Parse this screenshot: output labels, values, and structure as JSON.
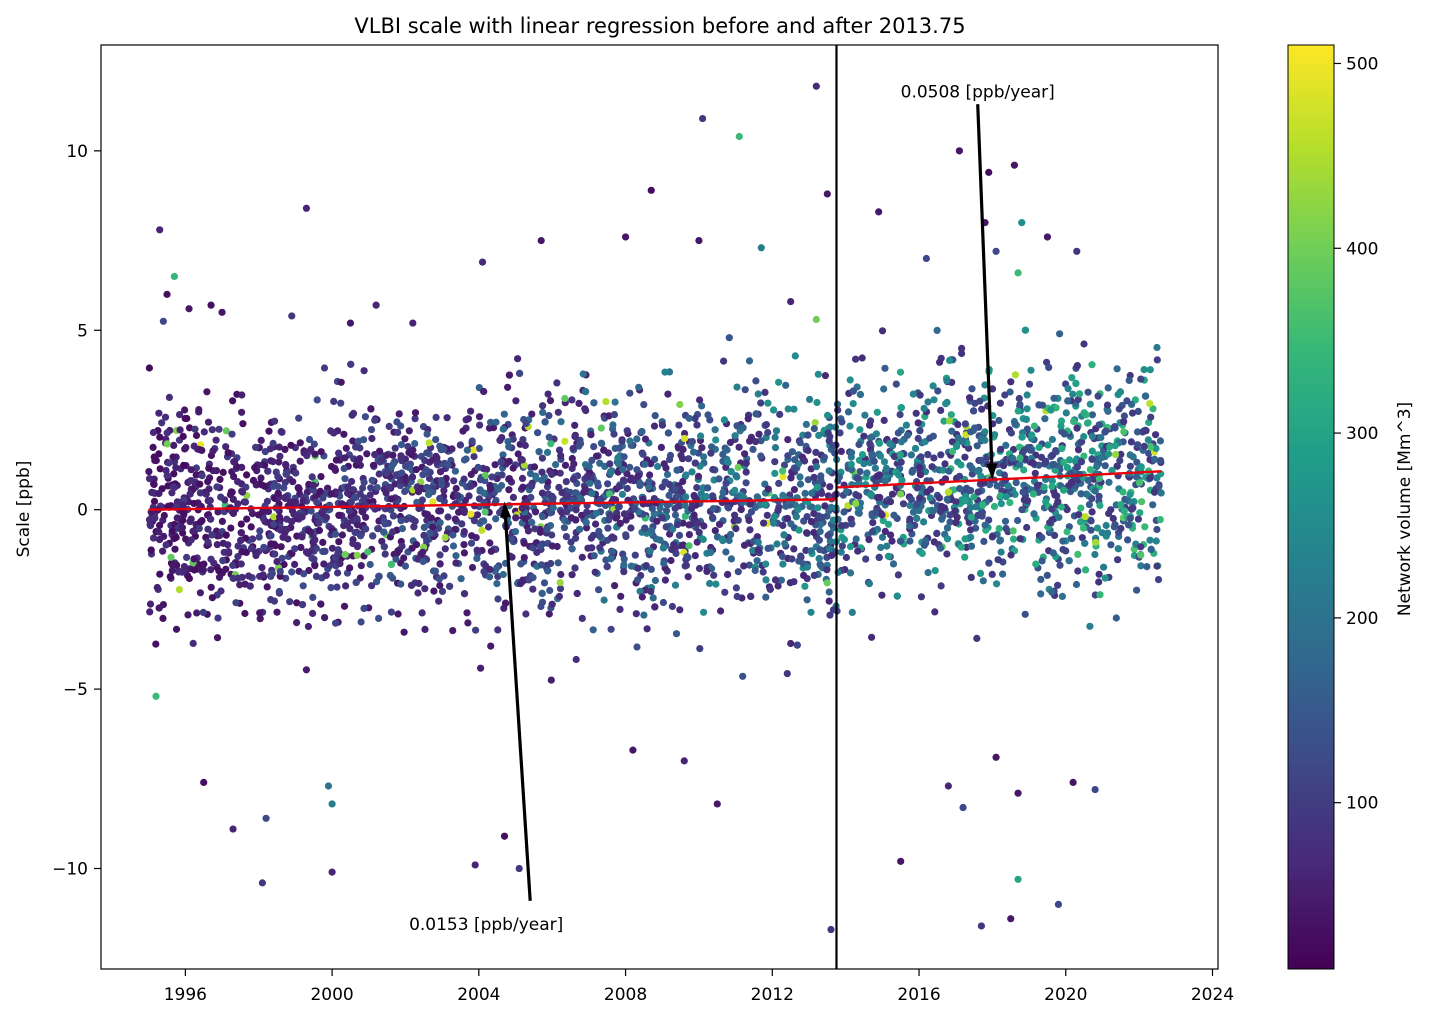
{
  "chart_data": {
    "type": "scatter",
    "title": "VLBI scale with linear regression before and after 2013.75",
    "xlabel": "",
    "ylabel": "Scale [ppb]",
    "xlim": [
      1993.7,
      2024.15
    ],
    "ylim": [
      -12.8,
      12.95
    ],
    "x_ticks": [
      1996,
      2000,
      2004,
      2008,
      2012,
      2016,
      2020,
      2024
    ],
    "y_ticks": [
      -10,
      -5,
      0,
      5,
      10
    ],
    "y_tick_labels": [
      "−10",
      "−5",
      "0",
      "5",
      "10"
    ],
    "colorbar": {
      "label": "Network volume [Mm^3]",
      "colormap": "viridis",
      "range": [
        10,
        510
      ],
      "ticks": [
        100,
        200,
        300,
        400,
        500
      ],
      "colors": [
        "#440154",
        "#482878",
        "#3e4989",
        "#31688e",
        "#26828e",
        "#1f9e89",
        "#35b779",
        "#6ece58",
        "#b5de2b",
        "#fde725"
      ]
    },
    "vertical_line": {
      "x": 2013.75,
      "color": "#000000"
    },
    "regression": [
      {
        "x": [
          1995.0,
          2013.75
        ],
        "y": [
          0.0,
          0.29
        ],
        "slope_label": "0.0153 [ppb/year]",
        "color": "#e8000b"
      },
      {
        "x": [
          2013.75,
          2022.6
        ],
        "y": [
          0.62,
          1.07
        ],
        "slope_label": "0.0508 [ppb/year]",
        "color": "#e8000b"
      }
    ],
    "annotations": [
      {
        "text": "0.0153 [ppb/year]",
        "text_at": [
          2004.2,
          -11.55
        ],
        "arrow_from": [
          2005.4,
          -10.9
        ],
        "arrow_to": [
          2004.7,
          0.23
        ]
      },
      {
        "text": "0.0508 [ppb/year]",
        "text_at": [
          2017.6,
          11.65
        ],
        "arrow_from": [
          2017.6,
          11.3
        ],
        "arrow_to": [
          2018.0,
          0.84
        ]
      }
    ],
    "outliers": [
      {
        "x": 1995.3,
        "y": 7.8,
        "v": 60
      },
      {
        "x": 1995.5,
        "y": 6.0,
        "v": 30
      },
      {
        "x": 1995.7,
        "y": 6.5,
        "v": 340
      },
      {
        "x": 1995.4,
        "y": 5.25,
        "v": 120
      },
      {
        "x": 1995.2,
        "y": -5.2,
        "v": 350
      },
      {
        "x": 1996.1,
        "y": 5.6,
        "v": 40
      },
      {
        "x": 1996.7,
        "y": 5.7,
        "v": 30
      },
      {
        "x": 1997.0,
        "y": 5.5,
        "v": 40
      },
      {
        "x": 1999.3,
        "y": 8.4,
        "v": 60
      },
      {
        "x": 1998.9,
        "y": 5.4,
        "v": 90
      },
      {
        "x": 2000.5,
        "y": 5.2,
        "v": 40
      },
      {
        "x": 2001.2,
        "y": 5.7,
        "v": 60
      },
      {
        "x": 2002.2,
        "y": 5.2,
        "v": 60
      },
      {
        "x": 2004.1,
        "y": 6.9,
        "v": 70
      },
      {
        "x": 2005.7,
        "y": 7.5,
        "v": 40
      },
      {
        "x": 2008.0,
        "y": 7.6,
        "v": 40
      },
      {
        "x": 2008.7,
        "y": 8.9,
        "v": 30
      },
      {
        "x": 2010.1,
        "y": 10.9,
        "v": 90
      },
      {
        "x": 2010.0,
        "y": 7.5,
        "v": 40
      },
      {
        "x": 2011.1,
        "y": 10.4,
        "v": 350
      },
      {
        "x": 2011.7,
        "y": 7.3,
        "v": 220
      },
      {
        "x": 2013.2,
        "y": 11.8,
        "v": 70
      },
      {
        "x": 2013.5,
        "y": 8.8,
        "v": 40
      },
      {
        "x": 2014.9,
        "y": 8.3,
        "v": 40
      },
      {
        "x": 2013.2,
        "y": 5.3,
        "v": 400
      },
      {
        "x": 2012.5,
        "y": 5.8,
        "v": 60
      },
      {
        "x": 2016.2,
        "y": 7.0,
        "v": 120
      },
      {
        "x": 2017.1,
        "y": 10.0,
        "v": 40
      },
      {
        "x": 2017.9,
        "y": 9.4,
        "v": 30
      },
      {
        "x": 2017.8,
        "y": 8.0,
        "v": 40
      },
      {
        "x": 2018.6,
        "y": 9.6,
        "v": 40
      },
      {
        "x": 2018.8,
        "y": 8.0,
        "v": 250
      },
      {
        "x": 2019.5,
        "y": 7.6,
        "v": 40
      },
      {
        "x": 2018.1,
        "y": 7.2,
        "v": 120
      },
      {
        "x": 2020.3,
        "y": 7.2,
        "v": 90
      },
      {
        "x": 2018.7,
        "y": 6.6,
        "v": 350
      },
      {
        "x": 1997.3,
        "y": -8.9,
        "v": 60
      },
      {
        "x": 1998.1,
        "y": -10.4,
        "v": 90
      },
      {
        "x": 1998.2,
        "y": -8.6,
        "v": 120
      },
      {
        "x": 2000.0,
        "y": -10.1,
        "v": 60
      },
      {
        "x": 1999.9,
        "y": -7.7,
        "v": 200
      },
      {
        "x": 2000.0,
        "y": -8.2,
        "v": 220
      },
      {
        "x": 1996.5,
        "y": -7.6,
        "v": 30
      },
      {
        "x": 2003.9,
        "y": -9.9,
        "v": 60
      },
      {
        "x": 2004.7,
        "y": -9.1,
        "v": 30
      },
      {
        "x": 2005.1,
        "y": -10.0,
        "v": 90
      },
      {
        "x": 2009.6,
        "y": -7.0,
        "v": 60
      },
      {
        "x": 2008.2,
        "y": -6.7,
        "v": 40
      },
      {
        "x": 2010.5,
        "y": -8.2,
        "v": 40
      },
      {
        "x": 2013.6,
        "y": -11.7,
        "v": 90
      },
      {
        "x": 2015.5,
        "y": -9.8,
        "v": 40
      },
      {
        "x": 2017.2,
        "y": -8.3,
        "v": 120
      },
      {
        "x": 2017.7,
        "y": -11.6,
        "v": 90
      },
      {
        "x": 2018.5,
        "y": -11.4,
        "v": 40
      },
      {
        "x": 2018.7,
        "y": -10.3,
        "v": 300
      },
      {
        "x": 2019.8,
        "y": -11.0,
        "v": 120
      },
      {
        "x": 2018.7,
        "y": -7.9,
        "v": 40
      },
      {
        "x": 2020.2,
        "y": -7.6,
        "v": 40
      },
      {
        "x": 2020.8,
        "y": -7.8,
        "v": 120
      },
      {
        "x": 2018.1,
        "y": -6.9,
        "v": 40
      },
      {
        "x": 2016.8,
        "y": -7.7,
        "v": 60
      }
    ],
    "bulk": {
      "n": 3700,
      "x_range": [
        1995.0,
        2022.6
      ],
      "note_spread_ppb": 1.45
    }
  }
}
